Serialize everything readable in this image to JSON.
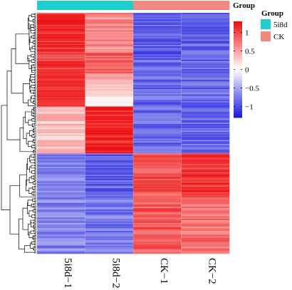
{
  "chart_data": {
    "type": "heatmap",
    "columns": [
      "5i8d-1",
      "5i8d-2",
      "CK-1",
      "CK-2"
    ],
    "column_annotation": {
      "title": "Group",
      "groups": [
        "5i8d",
        "5i8d",
        "CK",
        "CK"
      ]
    },
    "legend_group": {
      "title": "Group",
      "items": [
        {
          "label": "5i8d",
          "color": "#1fcfcf"
        },
        {
          "label": "CK",
          "color": "#f08a80"
        }
      ]
    },
    "color_scale": {
      "min": -1.3,
      "max": 1.3,
      "low": "#1b1bdc",
      "mid": "#ffffff",
      "high": "#ee1111",
      "ticks": [
        1,
        0.5,
        0,
        -0.5,
        -1
      ],
      "tick_labels": [
        "1",
        "0.5",
        "0",
        "−0.5",
        "−1"
      ]
    },
    "row_clusters": [
      {
        "rows": 30,
        "values": [
          1.1,
          0.65,
          -0.9,
          -0.9
        ]
      },
      {
        "rows": 15,
        "values": [
          1.05,
          0.85,
          -0.9,
          -0.9
        ]
      },
      {
        "rows": 25,
        "values": [
          1.2,
          0.05,
          -0.85,
          -0.85
        ]
      },
      {
        "rows": 35,
        "values": [
          0.35,
          1.2,
          -0.85,
          -0.85
        ]
      },
      {
        "rows": 33,
        "values": [
          -0.75,
          -0.9,
          0.95,
          1.1
        ]
      },
      {
        "rows": 42,
        "values": [
          -0.7,
          -0.75,
          0.9,
          0.75
        ]
      }
    ]
  }
}
